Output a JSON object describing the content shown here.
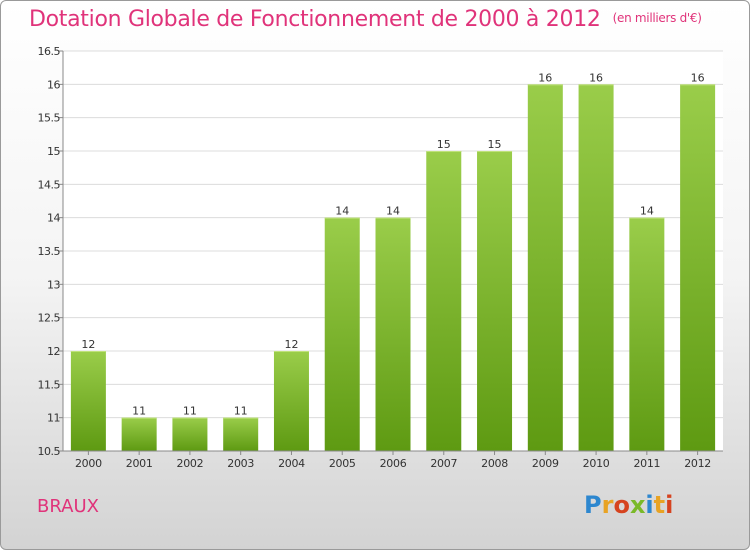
{
  "header": {
    "title": "Dotation Globale de Fonctionnement de 2000 à 2012",
    "unit": "(en milliers d'€)"
  },
  "footer": {
    "commune": "BRAUX",
    "logo": "Proxiti"
  },
  "colors": {
    "accent": "#e0337a",
    "bar_top": "#9acd4a",
    "bar_bottom": "#5e9a12"
  },
  "chart_data": {
    "type": "bar",
    "title": "Dotation Globale de Fonctionnement de 2000 à 2012",
    "subtitle": "(en milliers d'€)",
    "xlabel": "",
    "ylabel": "",
    "categories": [
      "2000",
      "2001",
      "2002",
      "2003",
      "2004",
      "2005",
      "2006",
      "2007",
      "2008",
      "2009",
      "2010",
      "2011",
      "2012"
    ],
    "values": [
      12,
      11,
      11,
      11,
      12,
      14,
      14,
      15,
      15,
      16,
      16,
      14,
      16
    ],
    "ylim": [
      10.5,
      16.5
    ],
    "yticks": [
      10.5,
      11,
      11.5,
      12,
      12.5,
      13,
      13.5,
      14,
      14.5,
      15,
      15.5,
      16,
      16.5
    ],
    "ytick_labels": [
      "10.5",
      "11",
      "11.5",
      "12",
      "12.5",
      "13",
      "13.5",
      "14",
      "14.5",
      "15",
      "15.5",
      "16",
      "16.5"
    ],
    "grid": true,
    "data_labels": true
  }
}
